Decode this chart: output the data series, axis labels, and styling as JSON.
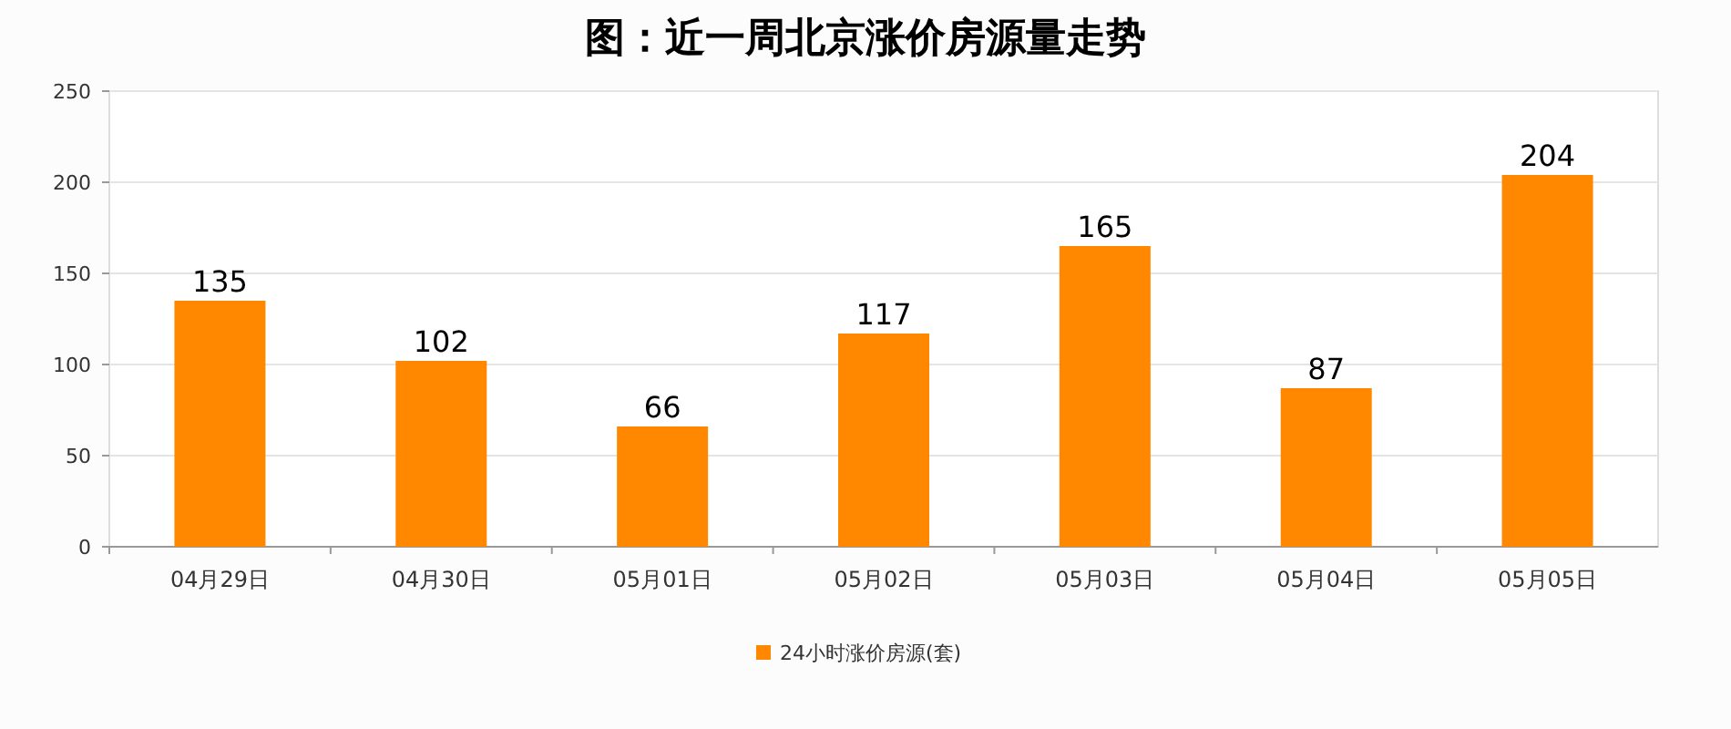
{
  "chart_data": {
    "type": "bar",
    "title": "图：近一周北京涨价房源量走势",
    "categories": [
      "04月29日",
      "04月30日",
      "05月01日",
      "05月02日",
      "05月03日",
      "05月04日",
      "05月05日"
    ],
    "series": [
      {
        "name": "24小时涨价房源(套)",
        "color": "#ff8800",
        "values": [
          135,
          102,
          66,
          117,
          165,
          87,
          204
        ]
      }
    ],
    "ylim": [
      0,
      250
    ],
    "yticks": [
      0,
      50,
      100,
      150,
      200,
      250
    ],
    "grid": "y",
    "legend": "bottom",
    "data_labels": true
  }
}
